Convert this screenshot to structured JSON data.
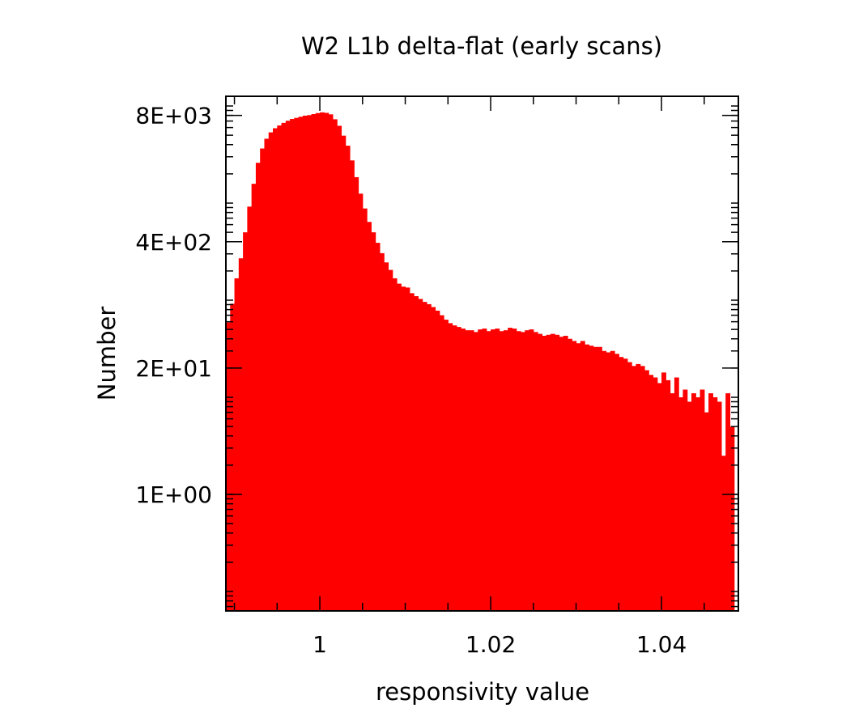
{
  "chart_data": {
    "type": "bar",
    "title": "W2 L1b delta-flat (early scans)",
    "xlabel": "responsivity value",
    "ylabel": "Number",
    "color": "#ff0000",
    "xlim": [
      0.989,
      1.049
    ],
    "ylog10_range": [
      -1.2,
      4.1
    ],
    "x_ticks": [
      {
        "value": 1.0,
        "label": "1"
      },
      {
        "value": 1.02,
        "label": "1.02"
      },
      {
        "value": 1.04,
        "label": "1.04"
      }
    ],
    "y_ticks": [
      {
        "value": 1,
        "label": "1E+00"
      },
      {
        "value": 20,
        "label": "2E+01"
      },
      {
        "value": 400,
        "label": "4E+02"
      },
      {
        "value": 8000,
        "label": "8E+03"
      }
    ],
    "bin_width": 0.0005,
    "bin_start": 0.989,
    "values": [
      59,
      92,
      168,
      270,
      500,
      920,
      1580,
      2600,
      3650,
      4600,
      5350,
      5900,
      6300,
      6700,
      7050,
      7350,
      7550,
      7750,
      7950,
      8050,
      8250,
      8450,
      8600,
      8500,
      8200,
      7300,
      6250,
      4950,
      3900,
      2750,
      1850,
      1250,
      880,
      640,
      500,
      390,
      305,
      245,
      205,
      168,
      148,
      138,
      135,
      118,
      110,
      103,
      96,
      91,
      85,
      78,
      70,
      63,
      58,
      55,
      53,
      51,
      49,
      49,
      47,
      50,
      51,
      48,
      50,
      51,
      48,
      49,
      52,
      51,
      48,
      47,
      49,
      50,
      47,
      45,
      43,
      44,
      45,
      44,
      42,
      43,
      40,
      38,
      36,
      38,
      35,
      34,
      33,
      33,
      30,
      29,
      30,
      28,
      26,
      25,
      23,
      21,
      22,
      21,
      19,
      17,
      16,
      14,
      18,
      15,
      11,
      16,
      10,
      12,
      9,
      11,
      10,
      12,
      7,
      11,
      10,
      9,
      2.5,
      11,
      5
    ]
  }
}
